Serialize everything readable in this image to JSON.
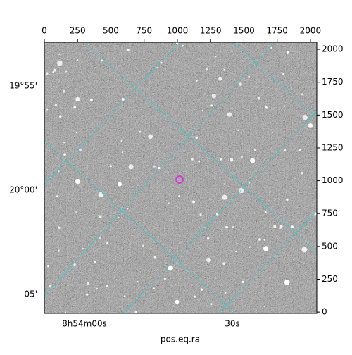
{
  "chart_data": {
    "type": "image",
    "xlabel": "pos.eq.ra",
    "xlim": [
      0,
      2048
    ],
    "xticks": [
      0,
      250,
      500,
      750,
      1000,
      1250,
      1500,
      1750,
      2000
    ],
    "ylim": [
      -10,
      2054
    ],
    "yticks": [
      0,
      250,
      500,
      750,
      1000,
      1250,
      1500,
      1750,
      2000
    ],
    "ra_labels": [
      "8h54m00s",
      "30s"
    ],
    "dec_labels": [
      "19°55'",
      "20°00'",
      "05'"
    ],
    "grid_color": "#33cccc"
  }
}
